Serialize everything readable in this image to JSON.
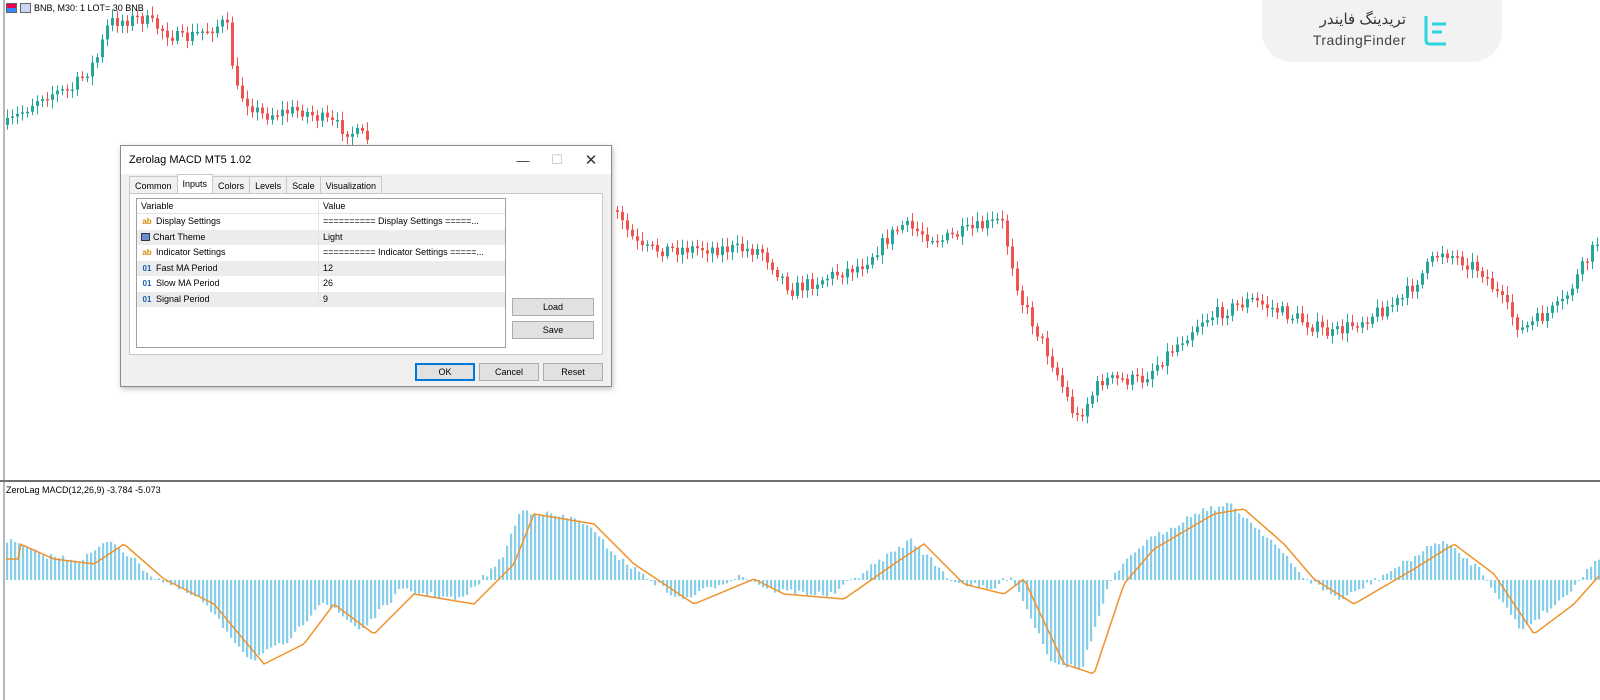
{
  "chart": {
    "symbol_line": "BNB, M30:  1 LOT= 30 BNB",
    "indicator_label": "ZeroLag MACD(12,26,9) -3.784 -5.073",
    "colors": {
      "bull": "#26a69a",
      "bear": "#ef5350",
      "histogram": "#87ceeb",
      "signal": "#f0922b",
      "frame": "#707070"
    }
  },
  "logo": {
    "text_fa": "تریدینگ فایندر",
    "text_en": "TradingFinder",
    "icon": "tradingfinder-logo-icon"
  },
  "dialog": {
    "title": "Zerolag MACD MT5 1.02",
    "tabs": [
      "Common",
      "Inputs",
      "Colors",
      "Levels",
      "Scale",
      "Visualization"
    ],
    "active_tab": "Inputs",
    "columns": {
      "variable": "Variable",
      "value": "Value"
    },
    "rows": [
      {
        "type": "ab",
        "variable": "Display Settings",
        "value": "========== Display Settings =====..."
      },
      {
        "type": "enum",
        "variable": "Chart Theme",
        "value": "Light"
      },
      {
        "type": "ab",
        "variable": "Indicator Settings",
        "value": "========== Indicator Settings =====..."
      },
      {
        "type": "01",
        "variable": "Fast MA Period",
        "value": "12"
      },
      {
        "type": "01",
        "variable": "Slow MA Period",
        "value": "26"
      },
      {
        "type": "01",
        "variable": "Signal Period",
        "value": "9"
      }
    ],
    "type_labels": {
      "ab": "ab",
      "01": "01"
    },
    "load_label": "Load",
    "save_label": "Save",
    "ok_label": "OK",
    "cancel_label": "Cancel",
    "reset_label": "Reset",
    "window_icons": {
      "minimize": "minimize-icon",
      "maximize": "maximize-icon",
      "close": "close-icon"
    }
  }
}
